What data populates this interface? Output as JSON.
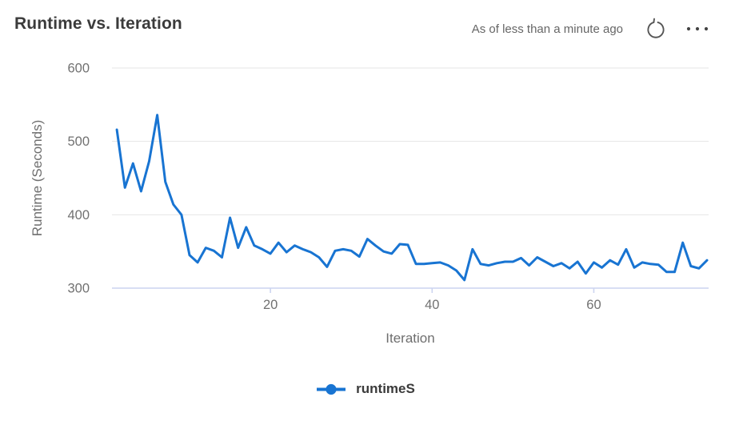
{
  "header": {
    "title": "Runtime vs. Iteration",
    "status": "As of less than a minute ago",
    "refresh_icon": "refresh-circular-arrow",
    "more_icon": "ellipsis-horizontal"
  },
  "legend": {
    "series_label": "runtimeS",
    "marker": "line-with-dot"
  },
  "colors": {
    "line": "#1874d2",
    "grid": "#e6e6e6",
    "axis_line": "#ccd4f0",
    "tick_label": "#717171",
    "axis_title": "#6e6e6e",
    "title_text": "#3b3b3b",
    "status_text": "#666666",
    "icon": "#555555",
    "legend_text": "#3a3a3a"
  },
  "chart_data": {
    "type": "line",
    "title": "Runtime vs. Iteration",
    "xlabel": "Iteration",
    "ylabel": "Runtime (Seconds)",
    "xlim": [
      0.4,
      74.2
    ],
    "ylim": [
      300,
      600
    ],
    "x_ticks": [
      20,
      40,
      60
    ],
    "y_ticks": [
      300,
      400,
      500,
      600
    ],
    "grid": "horizontal-only",
    "legend_position": "bottom-center",
    "series": [
      {
        "name": "runtimeS",
        "x": [
          1,
          2,
          3,
          4,
          5,
          6,
          7,
          8,
          9,
          10,
          11,
          12,
          13,
          14,
          15,
          16,
          17,
          18,
          19,
          20,
          21,
          22,
          23,
          24,
          25,
          26,
          27,
          28,
          29,
          30,
          31,
          32,
          33,
          34,
          35,
          36,
          37,
          38,
          39,
          40,
          41,
          42,
          43,
          44,
          45,
          46,
          47,
          48,
          49,
          50,
          51,
          52,
          53,
          54,
          55,
          56,
          57,
          58,
          59,
          60,
          61,
          62,
          63,
          64,
          65,
          66,
          67,
          68,
          69,
          70,
          71,
          72,
          73,
          74
        ],
        "values": [
          516,
          437,
          470,
          432,
          473,
          536,
          445,
          414,
          400,
          345,
          335,
          355,
          351,
          342,
          396,
          355,
          383,
          358,
          353,
          347,
          362,
          349,
          358,
          353,
          349,
          342,
          329,
          351,
          353,
          351,
          343,
          367,
          358,
          350,
          347,
          360,
          359,
          333,
          333,
          334,
          335,
          331,
          324,
          311,
          353,
          333,
          331,
          334,
          336,
          336,
          341,
          331,
          342,
          336,
          330,
          334,
          327,
          336,
          320,
          335,
          328,
          338,
          332,
          353,
          328,
          335,
          333,
          332,
          322,
          322,
          362,
          330,
          327,
          338
        ]
      }
    ]
  }
}
